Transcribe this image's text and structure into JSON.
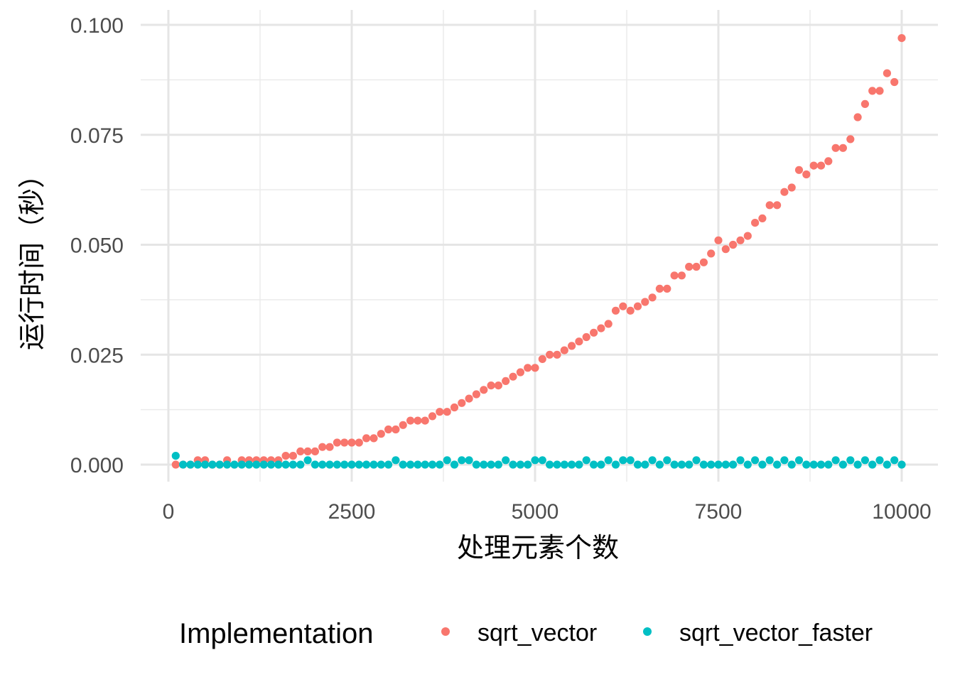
{
  "chart_data": {
    "type": "scatter",
    "title": "",
    "xlabel": "处理元素个数",
    "ylabel": "运行时间（秒）",
    "xlim": [
      0,
      10000
    ],
    "ylim": [
      0,
      0.1
    ],
    "x_ticks": [
      "0",
      "2500",
      "5000",
      "7500",
      "10000"
    ],
    "y_ticks": [
      "0.000",
      "0.025",
      "0.050",
      "0.075",
      "0.100"
    ],
    "grid": true,
    "legend": {
      "title": "Implementation",
      "position": "bottom"
    },
    "x": [
      100,
      200,
      300,
      400,
      500,
      600,
      700,
      800,
      900,
      1000,
      1100,
      1200,
      1300,
      1400,
      1500,
      1600,
      1700,
      1800,
      1900,
      2000,
      2100,
      2200,
      2300,
      2400,
      2500,
      2600,
      2700,
      2800,
      2900,
      3000,
      3100,
      3200,
      3300,
      3400,
      3500,
      3600,
      3700,
      3800,
      3900,
      4000,
      4100,
      4200,
      4300,
      4400,
      4500,
      4600,
      4700,
      4800,
      4900,
      5000,
      5100,
      5200,
      5300,
      5400,
      5500,
      5600,
      5700,
      5800,
      5900,
      6000,
      6100,
      6200,
      6300,
      6400,
      6500,
      6600,
      6700,
      6800,
      6900,
      7000,
      7100,
      7200,
      7300,
      7400,
      7500,
      7600,
      7700,
      7800,
      7900,
      8000,
      8100,
      8200,
      8300,
      8400,
      8500,
      8600,
      8700,
      8800,
      8900,
      9000,
      9100,
      9200,
      9300,
      9400,
      9500,
      9600,
      9700,
      9800,
      9900,
      10000
    ],
    "series": [
      {
        "name": "sqrt_vector",
        "color": "#F8766D",
        "values": [
          0,
          0,
          0,
          0.001,
          0.001,
          0,
          0,
          0.001,
          0,
          0.001,
          0.001,
          0.001,
          0.001,
          0.001,
          0.001,
          0.002,
          0.002,
          0.003,
          0.003,
          0.003,
          0.004,
          0.004,
          0.005,
          0.005,
          0.005,
          0.005,
          0.006,
          0.006,
          0.007,
          0.008,
          0.008,
          0.009,
          0.01,
          0.01,
          0.01,
          0.011,
          0.012,
          0.012,
          0.013,
          0.014,
          0.015,
          0.016,
          0.017,
          0.018,
          0.018,
          0.019,
          0.02,
          0.021,
          0.022,
          0.022,
          0.024,
          0.025,
          0.025,
          0.026,
          0.027,
          0.028,
          0.029,
          0.03,
          0.031,
          0.032,
          0.035,
          0.036,
          0.035,
          0.036,
          0.037,
          0.038,
          0.04,
          0.04,
          0.043,
          0.043,
          0.045,
          0.045,
          0.046,
          0.048,
          0.051,
          0.049,
          0.05,
          0.051,
          0.052,
          0.055,
          0.056,
          0.059,
          0.059,
          0.062,
          0.063,
          0.067,
          0.066,
          0.068,
          0.068,
          0.069,
          0.072,
          0.072,
          0.074,
          0.079,
          0.082,
          0.085,
          0.085,
          0.089,
          0.087,
          0.097
        ]
      },
      {
        "name": "sqrt_vector_faster",
        "color": "#00BFC4",
        "values": [
          0.002,
          0,
          0,
          0,
          0,
          0,
          0,
          0,
          0,
          0,
          0,
          0,
          0,
          0,
          0,
          0,
          0,
          0,
          0.001,
          0,
          0,
          0,
          0,
          0,
          0,
          0,
          0,
          0,
          0,
          0,
          0.001,
          0,
          0,
          0,
          0,
          0,
          0,
          0.001,
          0,
          0.001,
          0.001,
          0,
          0,
          0,
          0,
          0.001,
          0,
          0,
          0,
          0.001,
          0.001,
          0,
          0,
          0,
          0,
          0,
          0.001,
          0,
          0,
          0.001,
          0,
          0.001,
          0.001,
          0,
          0,
          0.001,
          0,
          0.001,
          0,
          0,
          0,
          0.001,
          0,
          0,
          0,
          0,
          0,
          0.001,
          0,
          0.001,
          0,
          0.001,
          0,
          0.001,
          0,
          0.001,
          0,
          0,
          0,
          0,
          0.001,
          0,
          0.001,
          0,
          0.001,
          0,
          0.001,
          0,
          0.001,
          0
        ]
      }
    ]
  }
}
